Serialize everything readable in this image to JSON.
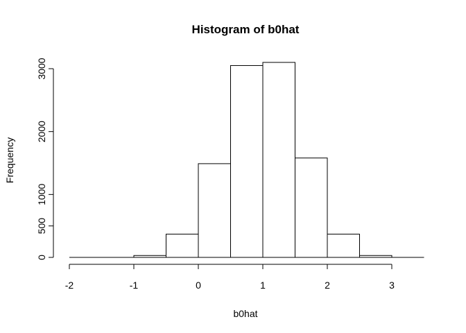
{
  "chart_data": {
    "type": "bar",
    "title": "Histogram of b0hat",
    "xlabel": "b0hat",
    "ylabel": "Frequency",
    "bins": [
      {
        "start": -2.0,
        "end": -1.5,
        "count": 0
      },
      {
        "start": -1.5,
        "end": -1.0,
        "count": 0
      },
      {
        "start": -1.0,
        "end": -0.5,
        "count": 30
      },
      {
        "start": -0.5,
        "end": 0.0,
        "count": 370
      },
      {
        "start": 0.0,
        "end": 0.5,
        "count": 1490
      },
      {
        "start": 0.5,
        "end": 1.0,
        "count": 3050
      },
      {
        "start": 1.0,
        "end": 1.5,
        "count": 3100
      },
      {
        "start": 1.5,
        "end": 2.0,
        "count": 1580
      },
      {
        "start": 2.0,
        "end": 2.5,
        "count": 370
      },
      {
        "start": 2.5,
        "end": 3.0,
        "count": 30
      },
      {
        "start": 3.0,
        "end": 3.5,
        "count": 0
      }
    ],
    "xticks": [
      -2,
      -1,
      0,
      1,
      2,
      3
    ],
    "yticks": [
      0,
      500,
      1000,
      2000,
      3000
    ],
    "xlim": [
      -2,
      3.5
    ],
    "ylim": [
      0,
      3200
    ],
    "grid": false,
    "legend": false,
    "bar_fill": "#ffffff",
    "bar_stroke": "#000000"
  }
}
